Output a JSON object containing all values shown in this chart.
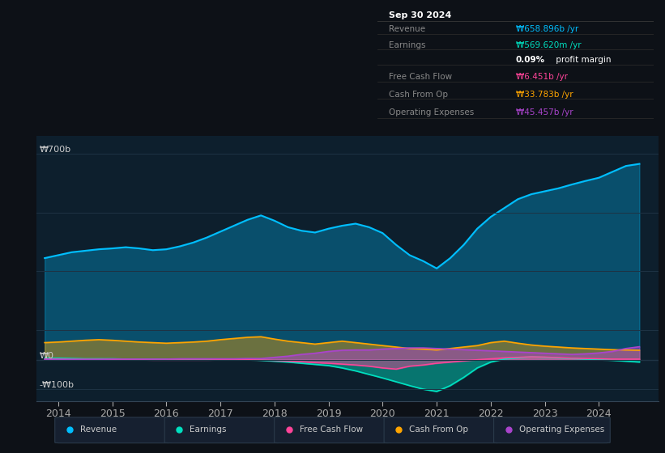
{
  "background_color": "#0d1117",
  "plot_bg_color": "#0d1f2d",
  "ylabel_top": "₩700b",
  "ylabel_zero": "₩0",
  "ylabel_neg": "-₩100b",
  "xlim": [
    2013.6,
    2025.1
  ],
  "ylim": [
    -140,
    760
  ],
  "xticks": [
    2014,
    2015,
    2016,
    2017,
    2018,
    2019,
    2020,
    2021,
    2022,
    2023,
    2024
  ],
  "colors": {
    "revenue": "#00bfff",
    "earnings": "#00e0c0",
    "free_cash_flow": "#ff4499",
    "cash_from_op": "#ffa500",
    "operating_expenses": "#aa44cc"
  },
  "info_box": {
    "title": "Sep 30 2024",
    "rows": [
      {
        "label": "Revenue",
        "value": "₩658.896b /yr",
        "color": "#00bfff"
      },
      {
        "label": "Earnings",
        "value": "₩569.620m /yr",
        "color": "#00e0c0"
      },
      {
        "label": "",
        "value": "0.09% profit margin",
        "color": "#ffffff"
      },
      {
        "label": "Free Cash Flow",
        "value": "₩6.451b /yr",
        "color": "#ff4499"
      },
      {
        "label": "Cash From Op",
        "value": "₩33.783b /yr",
        "color": "#ffa500"
      },
      {
        "label": "Operating Expenses",
        "value": "₩45.457b /yr",
        "color": "#aa44cc"
      }
    ]
  },
  "legend": [
    {
      "label": "Revenue",
      "color": "#00bfff"
    },
    {
      "label": "Earnings",
      "color": "#00e0c0"
    },
    {
      "label": "Free Cash Flow",
      "color": "#ff4499"
    },
    {
      "label": "Cash From Op",
      "color": "#ffa500"
    },
    {
      "label": "Operating Expenses",
      "color": "#aa44cc"
    }
  ],
  "series": {
    "x": [
      2013.75,
      2014.0,
      2014.25,
      2014.5,
      2014.75,
      2015.0,
      2015.25,
      2015.5,
      2015.75,
      2016.0,
      2016.25,
      2016.5,
      2016.75,
      2017.0,
      2017.25,
      2017.5,
      2017.75,
      2018.0,
      2018.25,
      2018.5,
      2018.75,
      2019.0,
      2019.25,
      2019.5,
      2019.75,
      2020.0,
      2020.25,
      2020.5,
      2020.75,
      2021.0,
      2021.25,
      2021.5,
      2021.75,
      2022.0,
      2022.25,
      2022.5,
      2022.75,
      2023.0,
      2023.25,
      2023.5,
      2023.75,
      2024.0,
      2024.25,
      2024.5,
      2024.75
    ],
    "revenue": [
      345,
      355,
      365,
      370,
      375,
      378,
      382,
      378,
      372,
      375,
      385,
      398,
      415,
      435,
      455,
      475,
      490,
      472,
      450,
      438,
      432,
      445,
      455,
      462,
      450,
      430,
      390,
      355,
      335,
      310,
      345,
      390,
      445,
      485,
      515,
      545,
      562,
      572,
      582,
      595,
      607,
      618,
      638,
      658,
      665
    ],
    "earnings": [
      5,
      5,
      4,
      3,
      3,
      3,
      2,
      2,
      2,
      2,
      2,
      1,
      1,
      1,
      0,
      0,
      -2,
      -5,
      -8,
      -12,
      -16,
      -20,
      -28,
      -38,
      -50,
      -62,
      -75,
      -88,
      -100,
      -108,
      -88,
      -60,
      -28,
      -8,
      2,
      6,
      10,
      8,
      6,
      4,
      2,
      0,
      -2,
      -5,
      -8
    ],
    "free_cash_flow": [
      2,
      2,
      1,
      1,
      1,
      1,
      0,
      0,
      -1,
      -1,
      -1,
      -1,
      -1,
      0,
      0,
      0,
      -1,
      -3,
      -5,
      -7,
      -10,
      -12,
      -15,
      -18,
      -22,
      -28,
      -32,
      -22,
      -18,
      -12,
      -8,
      -4,
      0,
      3,
      6,
      8,
      10,
      9,
      7,
      5,
      4,
      3,
      2,
      2,
      2
    ],
    "cash_from_op": [
      58,
      60,
      63,
      66,
      68,
      66,
      63,
      60,
      58,
      56,
      58,
      60,
      63,
      68,
      72,
      76,
      78,
      70,
      63,
      58,
      53,
      58,
      63,
      58,
      53,
      48,
      43,
      38,
      36,
      33,
      38,
      43,
      48,
      58,
      63,
      56,
      50,
      46,
      43,
      40,
      38,
      36,
      34,
      33,
      32
    ],
    "operating_expenses": [
      1,
      1,
      1,
      1,
      1,
      2,
      2,
      2,
      2,
      2,
      3,
      3,
      3,
      3,
      3,
      4,
      4,
      8,
      12,
      18,
      22,
      28,
      32,
      33,
      33,
      36,
      38,
      40,
      40,
      38,
      36,
      34,
      32,
      30,
      28,
      26,
      24,
      22,
      20,
      18,
      20,
      23,
      28,
      38,
      44
    ]
  }
}
